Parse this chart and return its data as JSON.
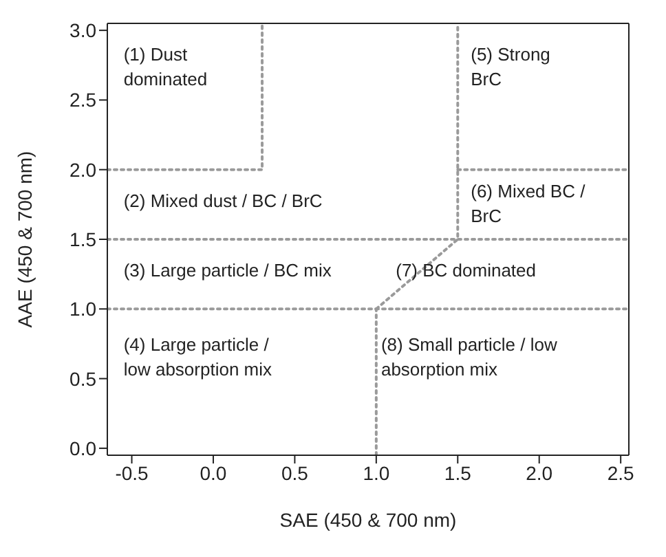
{
  "chart_data": {
    "type": "line",
    "xlabel": "SAE (450 & 700 nm)",
    "ylabel": "AAE (450 & 700 nm)",
    "xlim": [
      -0.65,
      2.55
    ],
    "xticks": [
      {
        "value": -0.5,
        "label": "-0.5"
      },
      {
        "value": 0,
        "label": "0.0"
      },
      {
        "value": 0.5,
        "label": "0.5"
      },
      {
        "value": 1,
        "label": "1.0"
      },
      {
        "value": 1.5,
        "label": "1.5"
      },
      {
        "value": 2,
        "label": "2.0"
      },
      {
        "value": 2.5,
        "label": "2.5"
      }
    ],
    "ylim": [
      -0.05,
      3.05
    ],
    "yticks": [
      {
        "value": 0,
        "label": "0.0"
      },
      {
        "value": 0.5,
        "label": "0.5"
      },
      {
        "value": 1,
        "label": "1.0"
      },
      {
        "value": 1.5,
        "label": "1.5"
      },
      {
        "value": 2,
        "label": "2.0"
      },
      {
        "value": 2.5,
        "label": "2.5"
      },
      {
        "value": 3,
        "label": "3.0"
      }
    ],
    "marker": "none",
    "line_style": "dotted",
    "series": [
      {
        "color": "#9a9a9a",
        "x": [
          -0.65,
          0.3,
          0.3
        ],
        "values": [
          2,
          2,
          3.05
        ]
      },
      {
        "color": "#9a9a9a",
        "x": [
          -0.65,
          2.55
        ],
        "values": [
          1.5,
          1.5
        ]
      },
      {
        "color": "#9a9a9a",
        "x": [
          -0.65,
          2.55
        ],
        "values": [
          1,
          1
        ]
      },
      {
        "color": "#9a9a9a",
        "x": [
          1,
          1
        ],
        "values": [
          -0.05,
          1
        ]
      },
      {
        "color": "#9a9a9a",
        "x": [
          1,
          1.5,
          1.5
        ],
        "values": [
          1,
          1.5,
          3.05
        ]
      },
      {
        "color": "#9a9a9a",
        "x": [
          1.5,
          2.55
        ],
        "values": [
          2,
          2
        ]
      }
    ],
    "annotations": [
      "(1) Dust\ndominated",
      "(2) Mixed dust / BC / BrC",
      "(3) Large particle / BC mix",
      "(4) Large particle /\nlow absorption mix",
      "(5) Strong\nBrC",
      "(6) Mixed BC /\nBrC",
      "(7) BC dominated",
      "(8) Small particle / low\nabsorption mix"
    ]
  }
}
